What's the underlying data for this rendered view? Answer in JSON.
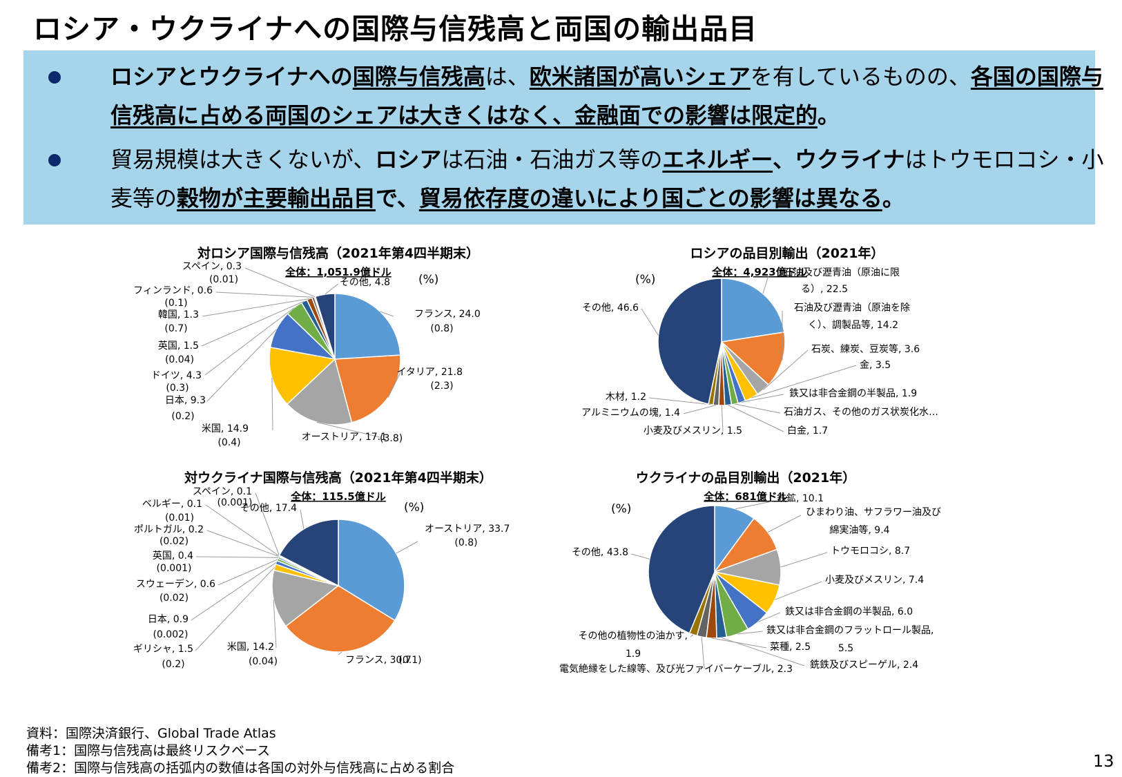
{
  "header": {
    "title": "ロシア・ウクライナへの国際与信残高と両国の輸出品目"
  },
  "summary": {
    "b1": [
      {
        "t": "ロシアとウクライナへの",
        "b": true
      },
      {
        "t": "国際与信残高",
        "b": true,
        "u": true
      },
      {
        "t": "は、"
      },
      {
        "t": "欧米諸国が高いシェア",
        "b": true,
        "u": true
      },
      {
        "t": "を有しているものの、"
      },
      {
        "t": "各国の国際与信残高に占める両国のシェアは大きくはなく、金融面での影響は限定的",
        "b": true,
        "u": true
      },
      {
        "t": "。",
        "b": true
      }
    ],
    "b2": [
      {
        "t": "貿易規模は大きくないが、"
      },
      {
        "t": "ロシア",
        "b": true
      },
      {
        "t": "は石油・石油ガス等の"
      },
      {
        "t": "エネルギー",
        "b": true,
        "u": true
      },
      {
        "t": "、ウクライナ",
        "b": true
      },
      {
        "t": "はトウモロコシ・小麦等の"
      },
      {
        "t": "穀物が主要輸出品目",
        "b": true,
        "u": true
      },
      {
        "t": "で、",
        "b": true
      },
      {
        "t": "貿易依存度の違いにより国ごとの影響は異なる",
        "b": true,
        "u": true
      },
      {
        "t": "。",
        "b": true
      }
    ]
  },
  "chart_data": [
    {
      "type": "pie",
      "title": "対ロシア国際与信残高（2021年第4四半期末）",
      "subtitle": "全体：1,051.9億ドル",
      "unit_label": "(%)",
      "slices": [
        {
          "name": "フランス",
          "value": 24.0,
          "share": "(0.8)",
          "color": "#5b9bd5"
        },
        {
          "name": "イタリア",
          "value": 21.8,
          "share": "(2.3)",
          "color": "#ed7d31"
        },
        {
          "name": "オーストリア",
          "value": 17.1,
          "share": "(3.8)",
          "color": "#a5a5a5"
        },
        {
          "name": "米国",
          "value": 14.9,
          "share": "(0.4)",
          "color": "#ffc000"
        },
        {
          "name": "日本",
          "value": 9.3,
          "share": "(0.2)",
          "color": "#4472c4"
        },
        {
          "name": "ドイツ",
          "value": 4.3,
          "share": "(0.3)",
          "color": "#70ad47"
        },
        {
          "name": "英国",
          "value": 1.5,
          "share": "(0.04)",
          "color": "#255e91"
        },
        {
          "name": "韓国",
          "value": 1.3,
          "share": "(0.7)",
          "color": "#9e480e"
        },
        {
          "name": "フィンランド",
          "value": 0.6,
          "share": "(0.1)",
          "color": "#636363"
        },
        {
          "name": "スペイン",
          "value": 0.3,
          "share": "(0.01)",
          "color": "#997300"
        },
        {
          "name": "その他",
          "value": 4.8,
          "share": "",
          "color": "#264478"
        }
      ]
    },
    {
      "type": "pie",
      "title": "ロシアの品目別輸出（2021年）",
      "subtitle": "全体：4,923億ドル",
      "unit_label": "(%)",
      "slices": [
        {
          "name": "石油及び瀝青油（原油に限る）",
          "value": 22.5,
          "color": "#5b9bd5"
        },
        {
          "name": "石油及び瀝青油（原油を除く）、調製品等",
          "value": 14.2,
          "color": "#ed7d31"
        },
        {
          "name": "石炭、練炭、豆炭等",
          "value": 3.6,
          "color": "#a5a5a5"
        },
        {
          "name": "金",
          "value": 3.5,
          "color": "#ffc000"
        },
        {
          "name": "鉄又は非合金鋼の半製品",
          "value": 1.9,
          "color": "#4472c4"
        },
        {
          "name": "石油ガス、その他のガス状炭化水…",
          "value": 1.7,
          "color": "#70ad47"
        },
        {
          "name": "白金",
          "value": 1.7,
          "color": "#255e91"
        },
        {
          "name": "小麦及びメスリン",
          "value": 1.5,
          "color": "#9e480e"
        },
        {
          "name": "アルミニウムの塊",
          "value": 1.4,
          "color": "#636363"
        },
        {
          "name": "木材",
          "value": 1.2,
          "color": "#997300"
        },
        {
          "name": "その他",
          "value": 46.6,
          "color": "#264478"
        }
      ]
    },
    {
      "type": "pie",
      "title": "対ウクライナ国際与信残高（2021年第4四半期末）",
      "subtitle": "全体：115.5億ドル",
      "unit_label": "(%)",
      "slices": [
        {
          "name": "オーストリア",
          "value": 33.7,
          "share": "(0.8)",
          "color": "#5b9bd5"
        },
        {
          "name": "フランス",
          "value": 30.7,
          "share": "(0.1)",
          "color": "#ed7d31"
        },
        {
          "name": "米国",
          "value": 14.2,
          "share": "(0.04)",
          "color": "#a5a5a5"
        },
        {
          "name": "ギリシャ",
          "value": 1.5,
          "share": "(0.2)",
          "color": "#ffc000"
        },
        {
          "name": "日本",
          "value": 0.9,
          "share": "(0.002)",
          "color": "#4472c4"
        },
        {
          "name": "スウェーデン",
          "value": 0.6,
          "share": "(0.02)",
          "color": "#70ad47"
        },
        {
          "name": "英国",
          "value": 0.4,
          "share": "(0.001)",
          "color": "#255e91"
        },
        {
          "name": "ポルトガル",
          "value": 0.2,
          "share": "(0.02)",
          "color": "#9e480e"
        },
        {
          "name": "ベルギー",
          "value": 0.1,
          "share": "(0.01)",
          "color": "#636363"
        },
        {
          "name": "スペイン",
          "value": 0.1,
          "share": "(0.001)",
          "color": "#997300"
        },
        {
          "name": "その他",
          "value": 17.4,
          "share": "",
          "color": "#264478"
        }
      ]
    },
    {
      "type": "pie",
      "title": "ウクライナの品目別輸出（2021年）",
      "subtitle": "全体：681億ドル",
      "unit_label": "(%)",
      "slices": [
        {
          "name": "鉄鉱",
          "value": 10.1,
          "color": "#5b9bd5"
        },
        {
          "name": "ひまわり油、サフラワー油及び綿実油等",
          "value": 9.4,
          "color": "#ed7d31"
        },
        {
          "name": "トウモロコシ",
          "value": 8.7,
          "color": "#a5a5a5"
        },
        {
          "name": "小麦及びメスリン",
          "value": 7.4,
          "color": "#ffc000"
        },
        {
          "name": "鉄又は非合金鋼の半製品",
          "value": 6.0,
          "color": "#4472c4"
        },
        {
          "name": "鉄又は非合金鋼のフラットロール製品",
          "value": 5.5,
          "color": "#70ad47"
        },
        {
          "name": "銑鉄及びスピーゲル",
          "value": 2.4,
          "color": "#255e91"
        },
        {
          "name": "菜種",
          "value": 2.5,
          "color": "#9e480e"
        },
        {
          "name": "電気絶縁をした線等、及び光ファイバーケーブル",
          "value": 2.3,
          "color": "#636363"
        },
        {
          "name": "その他の植物性の油かす",
          "value": 1.9,
          "color": "#997300"
        },
        {
          "name": "その他",
          "value": 43.8,
          "color": "#264478"
        }
      ]
    }
  ],
  "label_texts": {
    "c1": [
      [
        "フランス, 24.0",
        "(0.8)"
      ],
      [
        "イタリア, 21.8",
        "(2.3)"
      ],
      [
        "オーストリア, 17.1",
        "(3.8)"
      ],
      [
        "米国, 14.9",
        "(0.4)"
      ],
      [
        "日本, 9.3",
        "(0.2)"
      ],
      [
        "ドイツ, 4.3",
        "(0.3)"
      ],
      [
        "英国, 1.5",
        "(0.04)"
      ],
      [
        "韓国, 1.3",
        "(0.7)"
      ],
      [
        "フィンランド, 0.6",
        "(0.1)"
      ],
      [
        "スペイン, 0.3",
        "(0.01)"
      ],
      [
        "その他, 4.8"
      ]
    ],
    "c2": [
      [
        "石油及び瀝青油（原油に限",
        "る）, 22.5"
      ],
      [
        "石油及び瀝青油（原油を除",
        "く）、調製品等, 14.2"
      ],
      [
        "石炭、練炭、豆炭等, 3.6"
      ],
      [
        "金, 3.5"
      ],
      [
        "鉄又は非合金鋼の半製品, 1.9"
      ],
      [
        "石油ガス、その他のガス状炭化水…"
      ],
      [
        "白金, 1.7"
      ],
      [
        "小麦及びメスリン, 1.5"
      ],
      [
        "アルミニウムの塊, 1.4"
      ],
      [
        "木材, 1.2"
      ],
      [
        "その他, 46.6"
      ]
    ],
    "c3": [
      [
        "オーストリア, 33.7",
        "(0.8)"
      ],
      [
        "フランス, 30.7",
        "(0.1)"
      ],
      [
        "米国, 14.2",
        "(0.04)"
      ],
      [
        "ギリシャ, 1.5",
        "(0.2)"
      ],
      [
        "日本, 0.9",
        "(0.002)"
      ],
      [
        "スウェーデン, 0.6",
        "(0.02)"
      ],
      [
        "英国, 0.4",
        "(0.001)"
      ],
      [
        "ポルトガル, 0.2",
        "(0.02)"
      ],
      [
        "ベルギー, 0.1",
        "(0.01)"
      ],
      [
        "スペイン, 0.1",
        "(0.001)"
      ],
      [
        "その他, 17.4"
      ]
    ],
    "c4": [
      [
        "鉄鉱, 10.1"
      ],
      [
        "ひまわり油、サフラワー油及び",
        "綿実油等, 9.4"
      ],
      [
        "トウモロコシ, 8.7"
      ],
      [
        "小麦及びメスリン, 7.4"
      ],
      [
        "鉄又は非合金鋼の半製品, 6.0"
      ],
      [
        "鉄又は非合金鋼のフラットロール製品,",
        "5.5"
      ],
      [
        "銑鉄及びスピーゲル, 2.4"
      ],
      [
        "菜種, 2.5"
      ],
      [
        "電気絶縁をした線等、及び光ファイバーケーブル, 2.3"
      ],
      [
        "その他の植物性の油かす,",
        "1.9"
      ],
      [
        "その他, 43.8"
      ]
    ]
  },
  "notes": [
    "資料：国際決済銀行、Global Trade Atlas",
    "備考1：国際与信残高は最終リスクベース",
    "備考2：国際与信残高の括弧内の数値は各国の対外与信残高に占める割合"
  ],
  "page_number": "13"
}
